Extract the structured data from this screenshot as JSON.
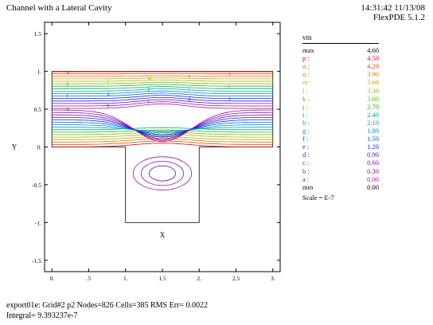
{
  "header": {
    "title": "Channel with a Lateral Cavity",
    "time": "14:31:42 11/13/08",
    "version": "FlexPDE 5.1.2"
  },
  "chart_data": {
    "type": "contour",
    "xlabel": "X",
    "ylabel": "Y",
    "xlim": [
      -0.1,
      3.1
    ],
    "ylim": [
      -1.65,
      1.65
    ],
    "x_ticks": [
      "0.",
      ".5",
      "1.",
      "1.5",
      "2.",
      "2.5",
      "3."
    ],
    "x_tick_values": [
      0,
      0.5,
      1,
      1.5,
      2,
      2.5,
      3
    ],
    "y_ticks": [
      "1.5",
      "1.",
      "0.5",
      "0.",
      "-0.5",
      "-1.",
      "-1.5"
    ],
    "y_tick_values": [
      1.5,
      1,
      0.5,
      0,
      -0.5,
      -1,
      -1.5
    ],
    "domain": {
      "channel": {
        "x": [
          0,
          3
        ],
        "y": [
          0,
          1
        ]
      },
      "cavity": {
        "x": [
          1,
          2
        ],
        "y": [
          -1,
          0
        ]
      }
    },
    "variable": "vm",
    "levels": [
      {
        "key": "max",
        "value": "4.60",
        "color": "#000000"
      },
      {
        "key": "p :",
        "value": "4.50",
        "color": "#e8001c"
      },
      {
        "key": "o :",
        "value": "4.20",
        "color": "#e24a00"
      },
      {
        "key": "n :",
        "value": "3.90",
        "color": "#d87a00"
      },
      {
        "key": "m :",
        "value": "3.60",
        "color": "#c9a000"
      },
      {
        "key": "l :",
        "value": "3.30",
        "color": "#a8b400"
      },
      {
        "key": "k :",
        "value": "3.00",
        "color": "#6bb800"
      },
      {
        "key": "j :",
        "value": "2.70",
        "color": "#1eb41e"
      },
      {
        "key": "i :",
        "value": "2.40",
        "color": "#00a870"
      },
      {
        "key": "h :",
        "value": "2.10",
        "color": "#00a8a8"
      },
      {
        "key": "g :",
        "value": "1.80",
        "color": "#008ccc"
      },
      {
        "key": "f :",
        "value": "1.50",
        "color": "#0060e0"
      },
      {
        "key": "e :",
        "value": "1.20",
        "color": "#0030e8"
      },
      {
        "key": "d :",
        "value": "0.90",
        "color": "#3a18d8"
      },
      {
        "key": "c :",
        "value": "0.60",
        "color": "#6a10c8"
      },
      {
        "key": "b :",
        "value": "0.30",
        "color": "#8a10b0"
      },
      {
        "key": "a :",
        "value": "0.00",
        "color": "#a0109a"
      },
      {
        "key": "min",
        "value": "0.00",
        "color": "#000000"
      }
    ],
    "scale": "Scale = E-7"
  },
  "footer": {
    "line1": "export01e:  Grid#2  p2  Nodes=826 Cells=385 RMS Err= 0.0022",
    "line2": "Integral=  9.393237e-7"
  }
}
